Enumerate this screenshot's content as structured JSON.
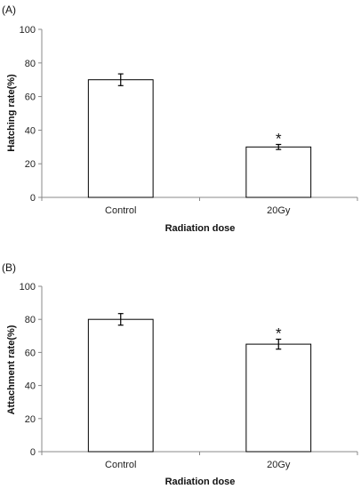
{
  "chart_data": [
    {
      "type": "bar",
      "panel_label": "(A)",
      "categories": [
        "Control",
        "20Gy"
      ],
      "values": [
        70,
        30
      ],
      "errors": [
        3.5,
        1.5
      ],
      "significance": [
        "",
        "*"
      ],
      "xlabel": "Radiation dose",
      "ylabel": "Hatching rate(%)",
      "ylim": [
        0,
        100
      ],
      "yticks": [
        0,
        20,
        40,
        60,
        80,
        100
      ],
      "grid": false,
      "bar_color": "#ffffff",
      "edge_color": "#000000"
    },
    {
      "type": "bar",
      "panel_label": "(B)",
      "categories": [
        "Control",
        "20Gy"
      ],
      "values": [
        80,
        65
      ],
      "errors": [
        3.5,
        3
      ],
      "significance": [
        "",
        "*"
      ],
      "xlabel": "Radiation dose",
      "ylabel": "Attachment rate(%)",
      "ylim": [
        0,
        100
      ],
      "yticks": [
        0,
        20,
        40,
        60,
        80,
        100
      ],
      "grid": false,
      "bar_color": "#ffffff",
      "edge_color": "#000000"
    }
  ]
}
